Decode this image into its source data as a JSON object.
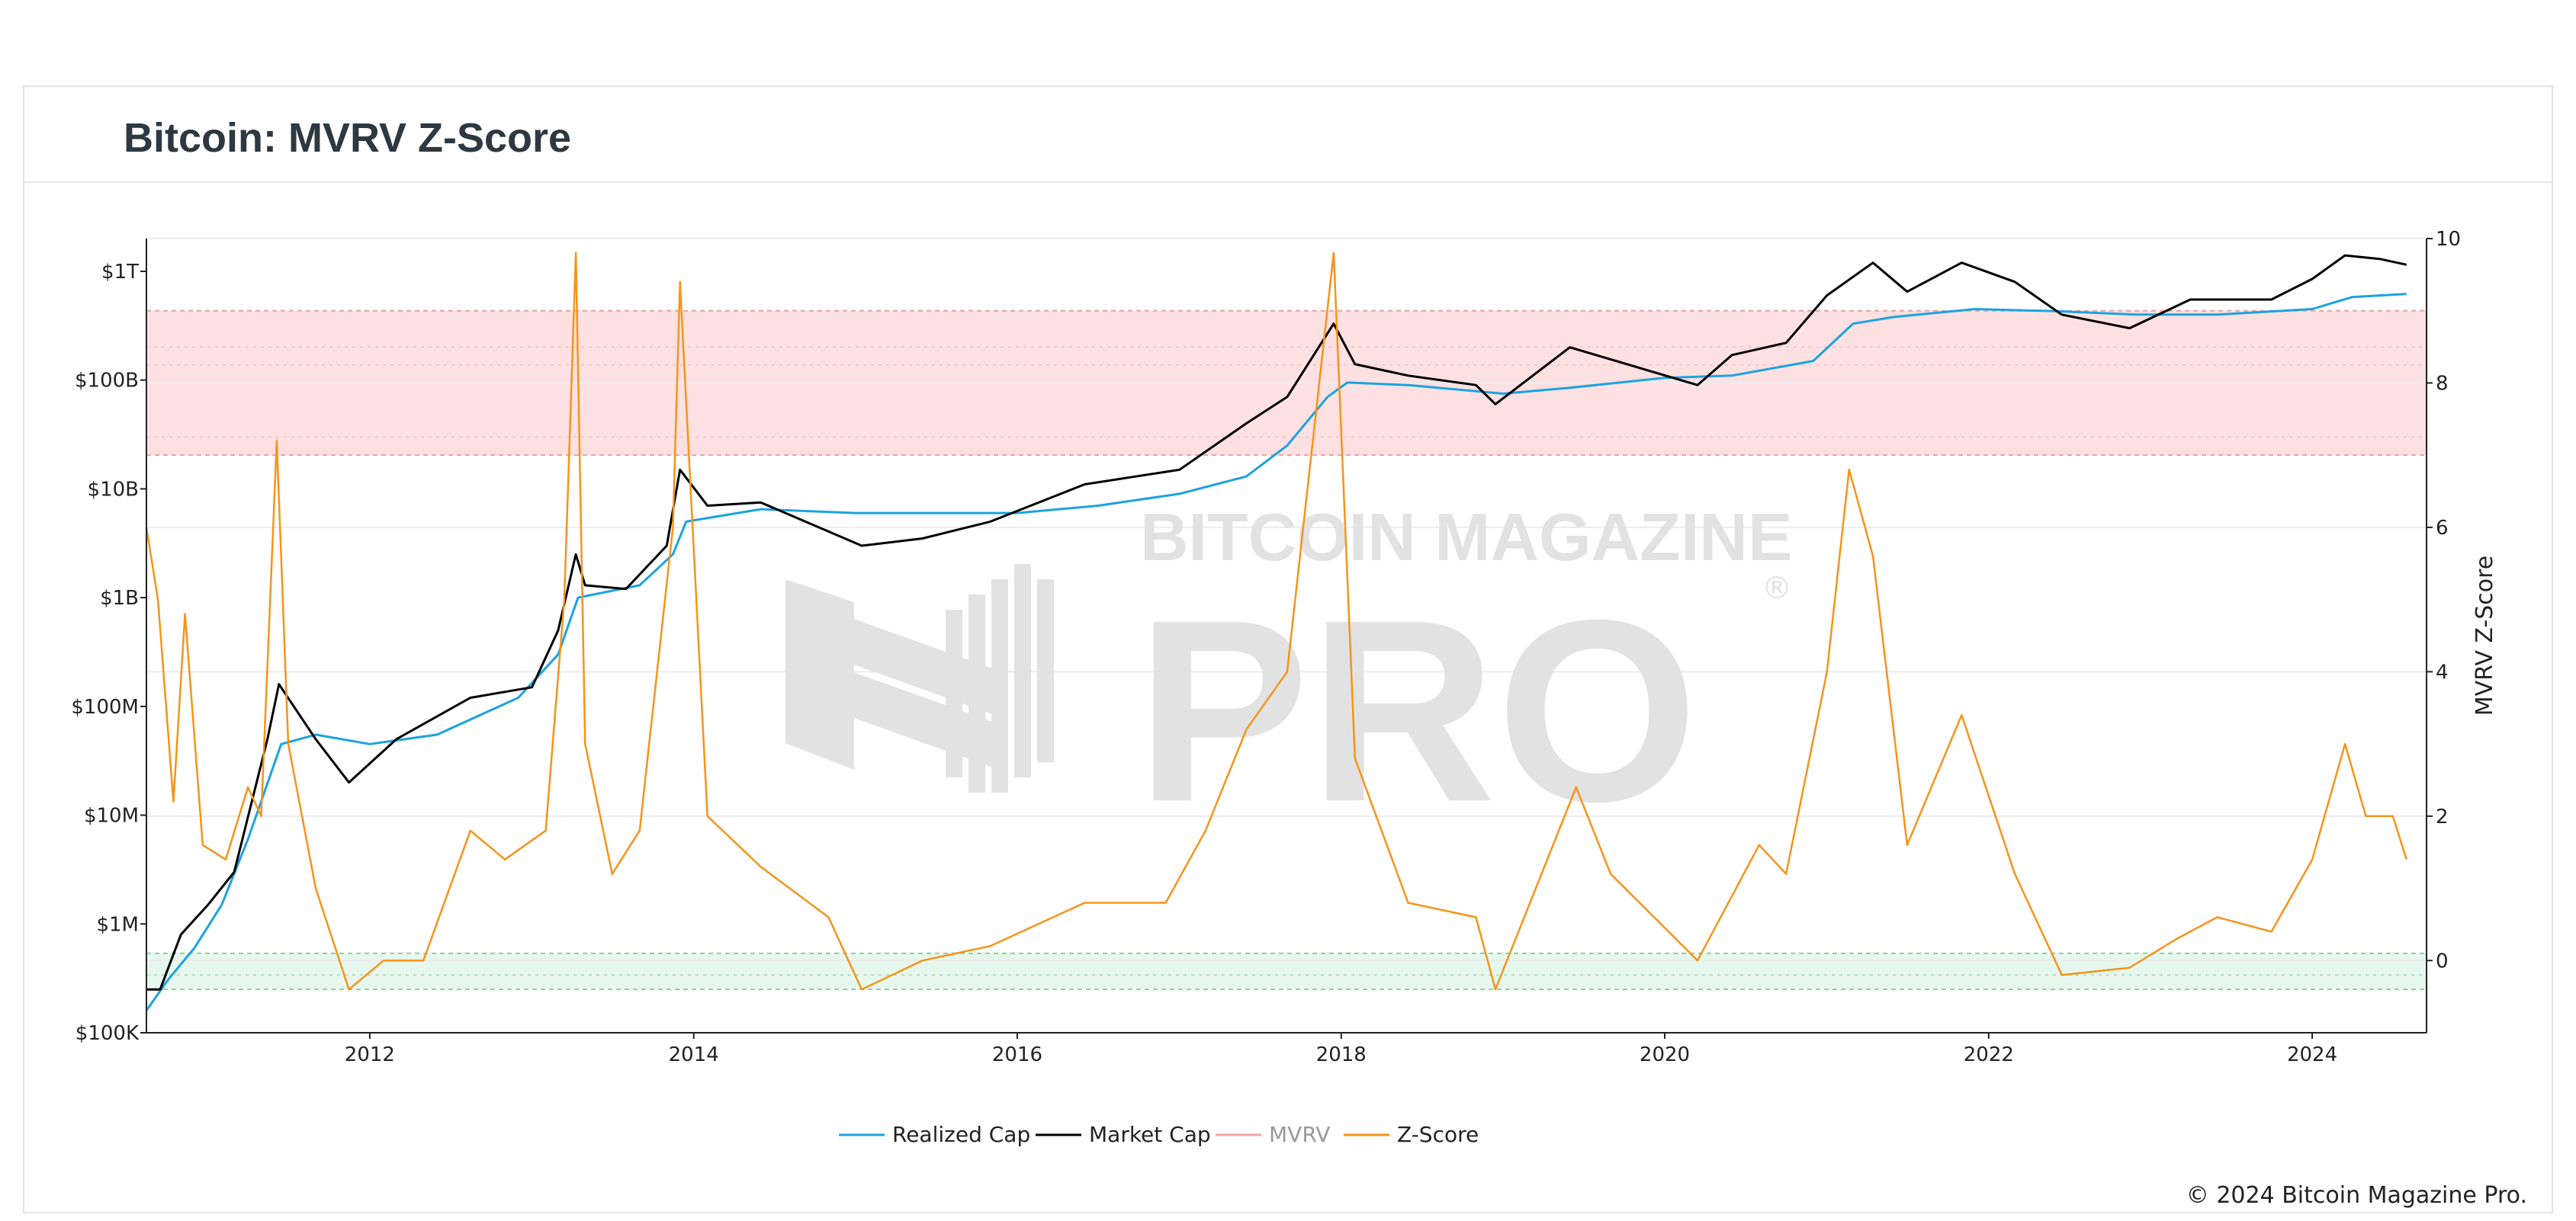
{
  "page": {
    "title": "Bitcoin: MVRV Z-Score",
    "copyright": "© 2024 Bitcoin Magazine Pro."
  },
  "watermark": {
    "top": "BITCOIN MAGAZINE",
    "main": "PRO",
    "mark": "®"
  },
  "colors": {
    "realized": "#1ba3e0",
    "market": "#000000",
    "mvrv": "#f7a3a8",
    "zscore": "#f7931a",
    "red_band": "#fde0e1",
    "green_band": "#e6f8ee"
  },
  "chart_data": {
    "type": "line",
    "x_range": [
      "2010-08-15",
      "2024-09-15"
    ],
    "x_ticks": [
      "2012",
      "2014",
      "2016",
      "2018",
      "2020",
      "2022",
      "2024"
    ],
    "y_left": {
      "scale": "log",
      "range": [
        100000,
        2000000000000
      ],
      "ticks": [
        {
          "v": 100000,
          "label": "$100K"
        },
        {
          "v": 1000000,
          "label": "$1M"
        },
        {
          "v": 10000000,
          "label": "$10M"
        },
        {
          "v": 100000000,
          "label": "$100M"
        },
        {
          "v": 1000000000,
          "label": "$1B"
        },
        {
          "v": 10000000000,
          "label": "$10B"
        },
        {
          "v": 100000000000,
          "label": "$100B"
        },
        {
          "v": 1000000000000,
          "label": "$1T"
        }
      ]
    },
    "y_right": {
      "scale": "linear",
      "range": [
        -1,
        10
      ],
      "ticks": [
        0,
        2,
        4,
        6,
        8,
        10
      ],
      "label": "MVRV Z-Score"
    },
    "bands": [
      {
        "from": 7,
        "to": 9,
        "color": "red"
      },
      {
        "from": -0.4,
        "to": 0.1,
        "color": "green"
      }
    ],
    "band_lines": [
      7.25,
      8.25,
      8.5,
      -0.2
    ],
    "legend": [
      {
        "name": "Realized Cap",
        "color": "#1ba3e0"
      },
      {
        "name": "Market Cap",
        "color": "#000000"
      },
      {
        "name": "MVRV",
        "color": "#f7a3a8"
      },
      {
        "name": "Z-Score",
        "color": "#f7931a"
      }
    ],
    "series": [
      {
        "name": "Realized Cap",
        "axis": "left",
        "points": [
          [
            "2010-08-15",
            160000
          ],
          [
            "2010-10-01",
            300000
          ],
          [
            "2010-12-01",
            600000
          ],
          [
            "2011-02-01",
            1500000
          ],
          [
            "2011-04-01",
            6000000
          ],
          [
            "2011-06-15",
            45000000
          ],
          [
            "2011-09-01",
            55000000
          ],
          [
            "2012-01-01",
            45000000
          ],
          [
            "2012-06-01",
            55000000
          ],
          [
            "2012-12-01",
            120000000
          ],
          [
            "2013-03-01",
            300000000
          ],
          [
            "2013-04-15",
            1000000000
          ],
          [
            "2013-09-01",
            1300000000
          ],
          [
            "2013-11-15",
            2500000000
          ],
          [
            "2013-12-15",
            5000000000
          ],
          [
            "2014-06-01",
            6500000000
          ],
          [
            "2015-01-01",
            6000000000
          ],
          [
            "2016-01-01",
            6000000000
          ],
          [
            "2016-07-01",
            7000000000
          ],
          [
            "2017-01-01",
            9000000000
          ],
          [
            "2017-06-01",
            13000000000
          ],
          [
            "2017-09-01",
            25000000000
          ],
          [
            "2017-12-01",
            70000000000
          ],
          [
            "2018-01-15",
            95000000000
          ],
          [
            "2018-06-01",
            90000000000
          ],
          [
            "2019-01-01",
            75000000000
          ],
          [
            "2019-06-01",
            85000000000
          ],
          [
            "2020-01-01",
            105000000000
          ],
          [
            "2020-06-01",
            110000000000
          ],
          [
            "2020-12-01",
            150000000000
          ],
          [
            "2021-03-01",
            330000000000
          ],
          [
            "2021-06-01",
            380000000000
          ],
          [
            "2021-12-01",
            450000000000
          ],
          [
            "2022-06-01",
            430000000000
          ],
          [
            "2022-12-01",
            400000000000
          ],
          [
            "2023-06-01",
            400000000000
          ],
          [
            "2024-01-01",
            450000000000
          ],
          [
            "2024-04-01",
            580000000000
          ],
          [
            "2024-08-01",
            620000000000
          ]
        ]
      },
      {
        "name": "Market Cap",
        "axis": "left",
        "points": [
          [
            "2010-08-15",
            250000
          ],
          [
            "2010-09-15",
            250000
          ],
          [
            "2010-11-01",
            800000
          ],
          [
            "2011-01-01",
            1500000
          ],
          [
            "2011-03-01",
            3000000
          ],
          [
            "2011-05-15",
            50000000
          ],
          [
            "2011-06-10",
            160000000
          ],
          [
            "2011-09-01",
            50000000
          ],
          [
            "2011-11-15",
            20000000
          ],
          [
            "2012-03-01",
            50000000
          ],
          [
            "2012-08-15",
            120000000
          ],
          [
            "2013-01-01",
            150000000
          ],
          [
            "2013-03-01",
            500000000
          ],
          [
            "2013-04-10",
            2500000000
          ],
          [
            "2013-05-01",
            1300000000
          ],
          [
            "2013-08-01",
            1200000000
          ],
          [
            "2013-11-01",
            3000000000
          ],
          [
            "2013-12-01",
            15000000000
          ],
          [
            "2014-02-01",
            7000000000
          ],
          [
            "2014-06-01",
            7500000000
          ],
          [
            "2015-01-15",
            3000000000
          ],
          [
            "2015-06-01",
            3500000000
          ],
          [
            "2015-11-01",
            5000000000
          ],
          [
            "2016-06-01",
            11000000000
          ],
          [
            "2017-01-01",
            15000000000
          ],
          [
            "2017-06-01",
            40000000000
          ],
          [
            "2017-09-01",
            70000000000
          ],
          [
            "2017-12-15",
            330000000000
          ],
          [
            "2018-02-01",
            140000000000
          ],
          [
            "2018-06-01",
            110000000000
          ],
          [
            "2018-11-01",
            90000000000
          ],
          [
            "2018-12-15",
            60000000000
          ],
          [
            "2019-06-01",
            200000000000
          ],
          [
            "2020-03-15",
            90000000000
          ],
          [
            "2020-06-01",
            170000000000
          ],
          [
            "2020-10-01",
            220000000000
          ],
          [
            "2021-01-01",
            600000000000
          ],
          [
            "2021-04-15",
            1200000000000
          ],
          [
            "2021-07-01",
            650000000000
          ],
          [
            "2021-11-01",
            1200000000000
          ],
          [
            "2022-03-01",
            800000000000
          ],
          [
            "2022-06-15",
            400000000000
          ],
          [
            "2022-11-15",
            300000000000
          ],
          [
            "2023-04-01",
            550000000000
          ],
          [
            "2023-10-01",
            550000000000
          ],
          [
            "2024-01-01",
            850000000000
          ],
          [
            "2024-03-15",
            1400000000000
          ],
          [
            "2024-06-01",
            1300000000000
          ],
          [
            "2024-08-01",
            1150000000000
          ]
        ]
      },
      {
        "name": "Z-Score",
        "axis": "right",
        "points": [
          [
            "2010-08-15",
            6.0
          ],
          [
            "2010-09-10",
            5.0
          ],
          [
            "2010-10-15",
            2.2
          ],
          [
            "2010-11-10",
            4.8
          ],
          [
            "2010-12-20",
            1.6
          ],
          [
            "2011-02-10",
            1.4
          ],
          [
            "2011-04-01",
            2.4
          ],
          [
            "2011-05-01",
            2.0
          ],
          [
            "2011-06-05",
            7.2
          ],
          [
            "2011-07-01",
            3.0
          ],
          [
            "2011-09-01",
            1.0
          ],
          [
            "2011-11-15",
            -0.4
          ],
          [
            "2012-02-01",
            0.0
          ],
          [
            "2012-05-01",
            0.0
          ],
          [
            "2012-08-15",
            1.8
          ],
          [
            "2012-11-01",
            1.4
          ],
          [
            "2013-02-01",
            1.8
          ],
          [
            "2013-03-15",
            5.0
          ],
          [
            "2013-04-10",
            9.8
          ],
          [
            "2013-05-01",
            3.0
          ],
          [
            "2013-07-01",
            1.2
          ],
          [
            "2013-09-01",
            1.8
          ],
          [
            "2013-11-15",
            6.0
          ],
          [
            "2013-12-01",
            9.4
          ],
          [
            "2014-02-01",
            2.0
          ],
          [
            "2014-06-01",
            1.3
          ],
          [
            "2014-11-01",
            0.6
          ],
          [
            "2015-01-15",
            -0.4
          ],
          [
            "2015-06-01",
            0.0
          ],
          [
            "2015-11-01",
            0.2
          ],
          [
            "2016-06-01",
            0.8
          ],
          [
            "2016-12-01",
            0.8
          ],
          [
            "2017-03-01",
            1.8
          ],
          [
            "2017-06-01",
            3.2
          ],
          [
            "2017-09-01",
            4.0
          ],
          [
            "2017-12-15",
            9.8
          ],
          [
            "2018-02-01",
            2.8
          ],
          [
            "2018-06-01",
            0.8
          ],
          [
            "2018-11-01",
            0.6
          ],
          [
            "2018-12-15",
            -0.4
          ],
          [
            "2019-06-15",
            2.4
          ],
          [
            "2019-09-01",
            1.2
          ],
          [
            "2020-03-15",
            0.0
          ],
          [
            "2020-08-01",
            1.6
          ],
          [
            "2020-10-01",
            1.2
          ],
          [
            "2021-01-01",
            4.0
          ],
          [
            "2021-02-20",
            6.8
          ],
          [
            "2021-04-15",
            5.6
          ],
          [
            "2021-07-01",
            1.6
          ],
          [
            "2021-11-01",
            3.4
          ],
          [
            "2022-03-01",
            1.2
          ],
          [
            "2022-06-15",
            -0.2
          ],
          [
            "2022-11-15",
            -0.1
          ],
          [
            "2023-03-01",
            0.3
          ],
          [
            "2023-06-01",
            0.6
          ],
          [
            "2023-10-01",
            0.4
          ],
          [
            "2024-01-01",
            1.4
          ],
          [
            "2024-03-15",
            3.0
          ],
          [
            "2024-05-01",
            2.0
          ],
          [
            "2024-07-01",
            2.0
          ],
          [
            "2024-08-01",
            1.4
          ]
        ]
      }
    ]
  }
}
